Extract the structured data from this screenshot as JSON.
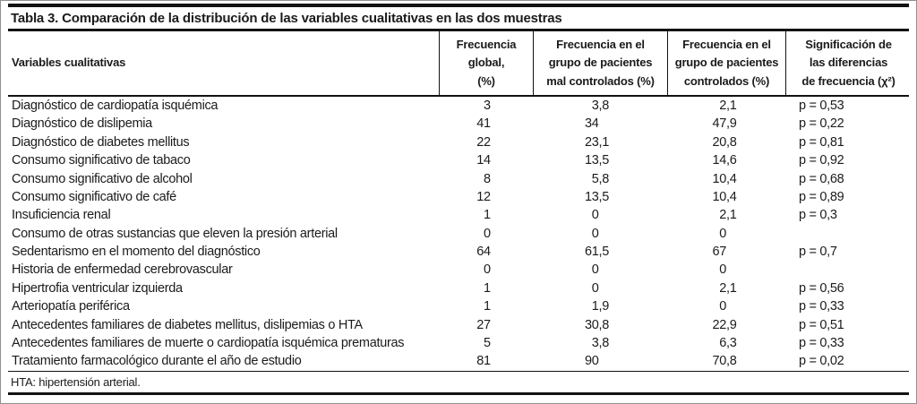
{
  "table": {
    "title": "Tabla 3. Comparación de la distribución de las variables cualitativas en las dos muestras",
    "headers": [
      {
        "id": "variables",
        "text": "Variables cualitativas"
      },
      {
        "id": "global",
        "text": "Frecuencia\nglobal,\n(%)"
      },
      {
        "id": "mal_controlados",
        "text": "Frecuencia en el\ngrupo de pacientes\nmal controlados (%)"
      },
      {
        "id": "controlados",
        "text": "Frecuencia en el\ngrupo de pacientes\ncontrolados (%)"
      },
      {
        "id": "significacion",
        "text": "Significación de\nlas diferencias\nde frecuencia (χ²)"
      }
    ],
    "rows": [
      {
        "name": "Diagnóstico de cardiopatía isquémica",
        "global": "3",
        "bad": "3,8",
        "good": "2,1",
        "p": "p = 0,53"
      },
      {
        "name": "Diagnóstico de dislipemia",
        "global": "41",
        "bad": "34",
        "good": "47,9",
        "p": "p = 0,22"
      },
      {
        "name": "Diagnóstico de diabetes mellitus",
        "global": "22",
        "bad": "23,1",
        "good": "20,8",
        "p": "p = 0,81"
      },
      {
        "name": "Consumo significativo de tabaco",
        "global": "14",
        "bad": "13,5",
        "good": "14,6",
        "p": "p = 0,92"
      },
      {
        "name": "Consumo significativo de alcohol",
        "global": "8",
        "bad": "5,8",
        "good": "10,4",
        "p": "p = 0,68"
      },
      {
        "name": "Consumo significativo de café",
        "global": "12",
        "bad": "13,5",
        "good": "10,4",
        "p": "p = 0,89"
      },
      {
        "name": "Insuficiencia renal",
        "global": "1",
        "bad": "0",
        "good": "2,1",
        "p": "p = 0,3"
      },
      {
        "name": "Consumo de otras sustancias que eleven la presión arterial",
        "global": "0",
        "bad": "0",
        "good": "0",
        "p": ""
      },
      {
        "name": "Sedentarismo en el momento del diagnóstico",
        "global": "64",
        "bad": "61,5",
        "good": "67",
        "p": "p = 0,7"
      },
      {
        "name": "Historia de enfermedad cerebrovascular",
        "global": "0",
        "bad": "0",
        "good": "0",
        "p": ""
      },
      {
        "name": "Hipertrofia ventricular izquierda",
        "global": "1",
        "bad": "0",
        "good": "2,1",
        "p": "p = 0,56"
      },
      {
        "name": "Arteriopatía periférica",
        "global": "1",
        "bad": "1,9",
        "good": "0",
        "p": "p = 0,33"
      },
      {
        "name": "Antecedentes familiares de diabetes mellitus, dislipemias o HTA",
        "global": "27",
        "bad": "30,8",
        "good": "22,9",
        "p": "p = 0,51"
      },
      {
        "name": "Antecedentes familiares de muerte o cardiopatía isquémica prematuras",
        "global": "5",
        "bad": "3,8",
        "good": "6,3",
        "p": "p = 0,33"
      },
      {
        "name": "Tratamiento farmacológico durante el año de estudio",
        "global": "81",
        "bad": "90",
        "good": "70,8",
        "p": "p = 0,02"
      }
    ],
    "footnote": "HTA: hipertensión arterial."
  }
}
